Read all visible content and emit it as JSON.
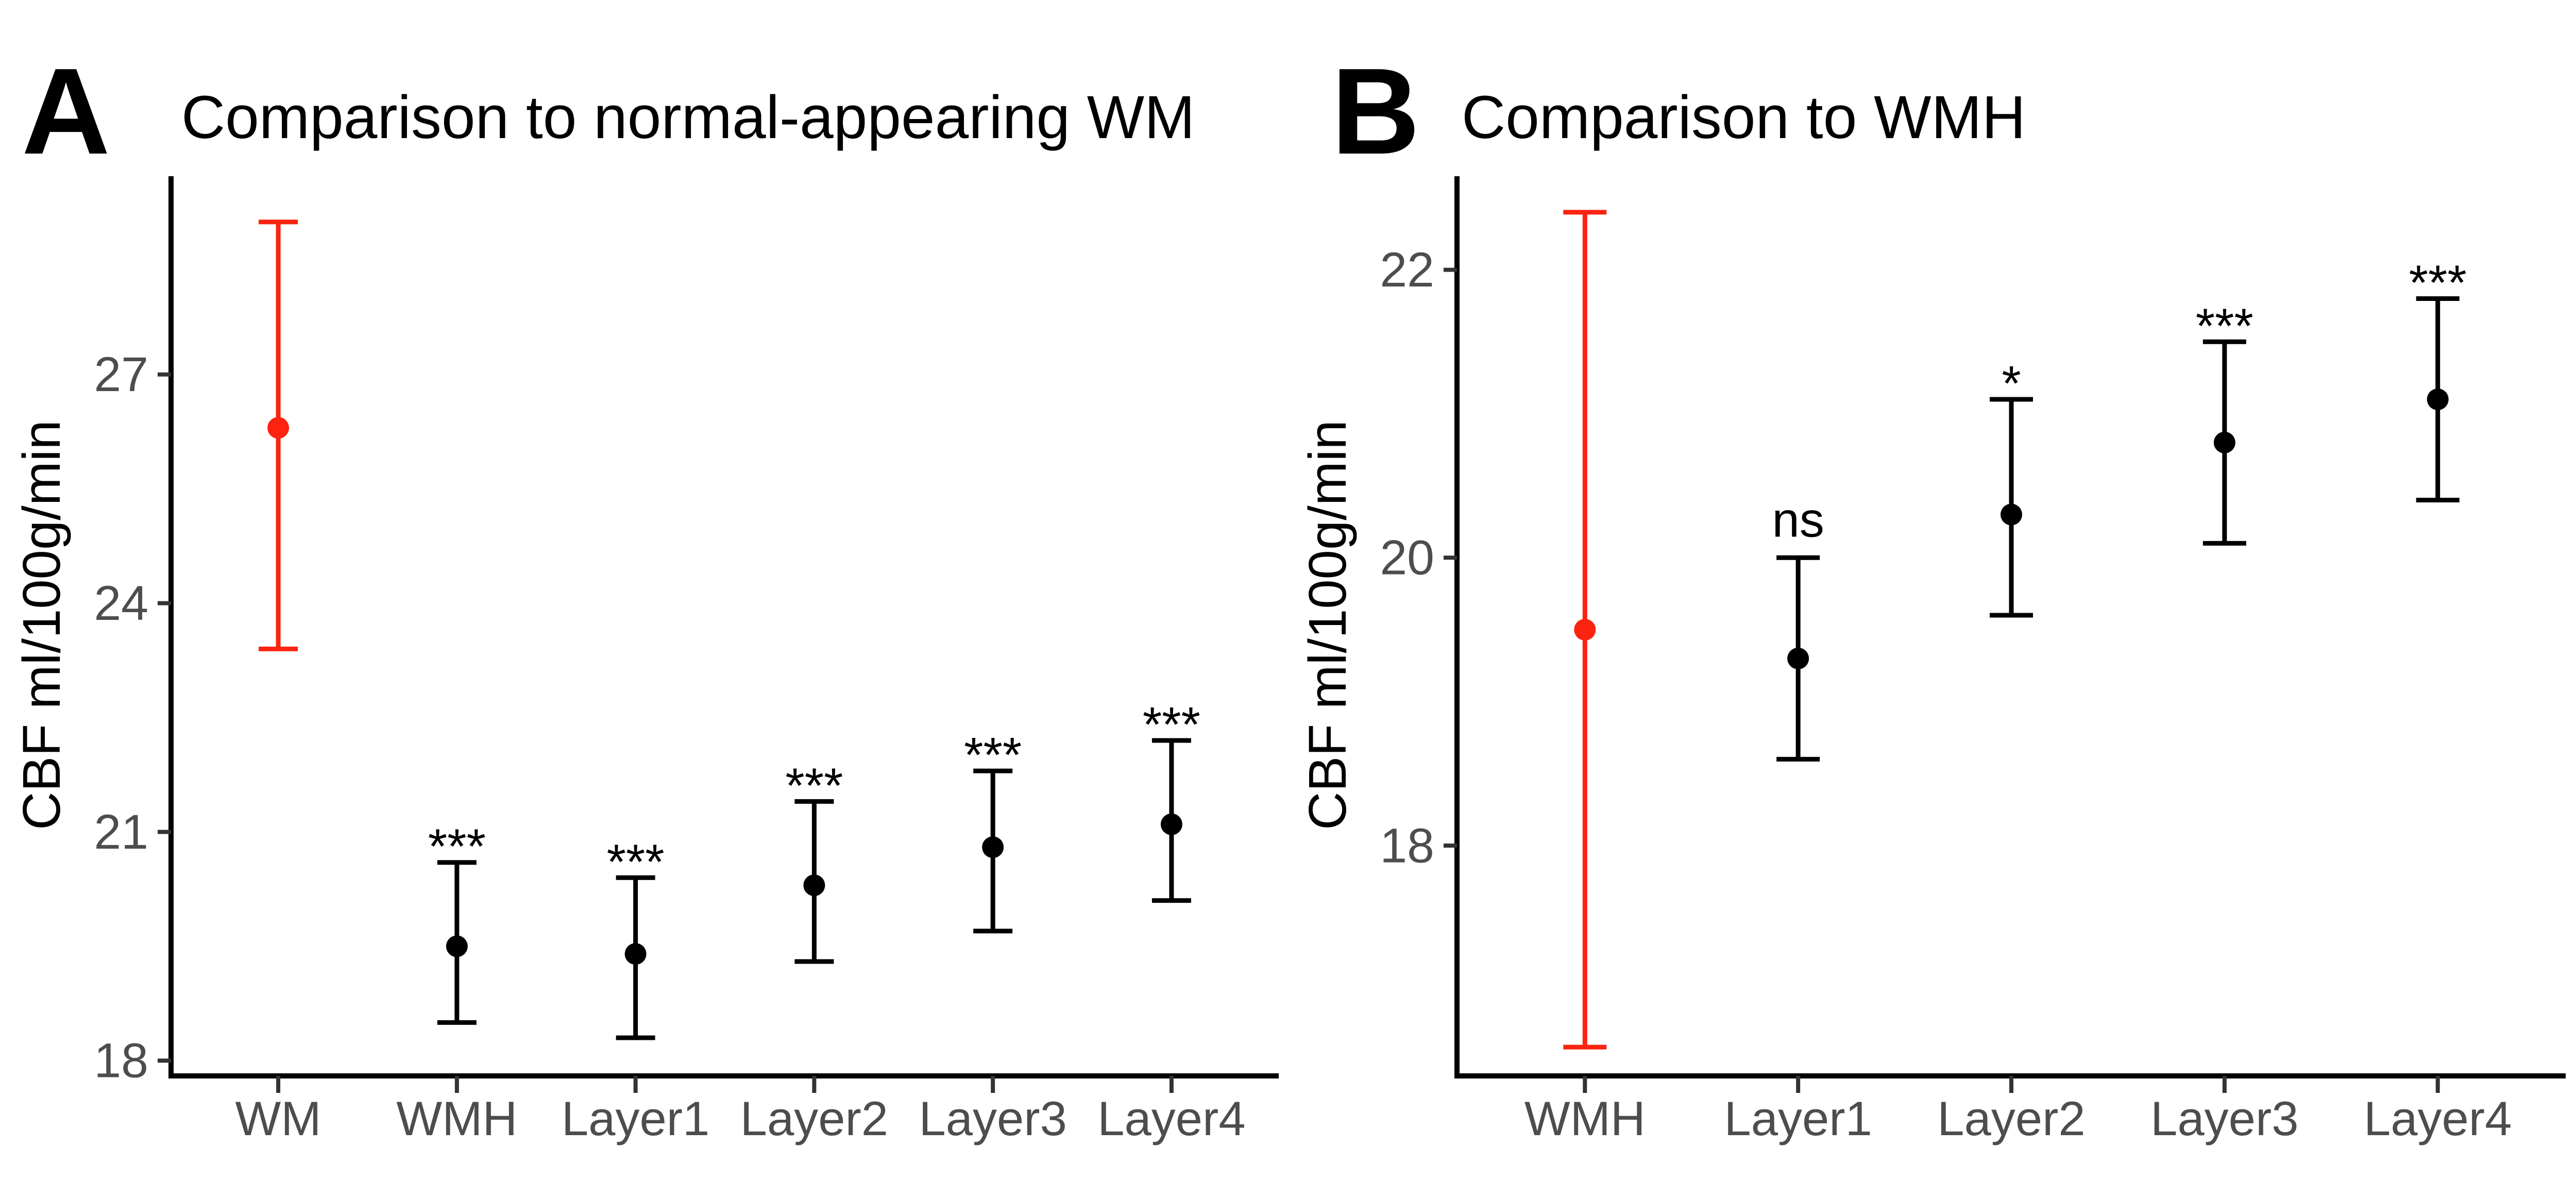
{
  "figure": {
    "background": "#ffffff",
    "axis_color": "#000000",
    "tick_mark_color": "#333333",
    "tick_label_color": "#4d4d4d",
    "category_label_color": "#4d4d4d",
    "title_color": "#000000",
    "highlight_red": "#fc2310",
    "point_black": "#000000",
    "significance_color": "#000000"
  },
  "chart_data": [
    {
      "type": "scatter",
      "subtype": "pointrange-errorbar",
      "panel_letter": "A",
      "title": "Comparison to normal-appearing WM",
      "xlabel": "",
      "ylabel": "CBF ml/100g/min",
      "grid": false,
      "legend": false,
      "ylim": [
        17.8,
        29.6
      ],
      "yticks": [
        18,
        21,
        24,
        27
      ],
      "categories": [
        "WM",
        "WMH",
        "Layer1",
        "Layer2",
        "Layer3",
        "Layer4"
      ],
      "points": [
        {
          "category": "WM",
          "mean": 26.3,
          "ci_lower": 23.4,
          "ci_upper": 29.0,
          "color": "#fc2310",
          "significance": ""
        },
        {
          "category": "WMH",
          "mean": 19.5,
          "ci_lower": 18.5,
          "ci_upper": 20.6,
          "color": "#000000",
          "significance": "***"
        },
        {
          "category": "Layer1",
          "mean": 19.4,
          "ci_lower": 18.3,
          "ci_upper": 20.4,
          "color": "#000000",
          "significance": "***"
        },
        {
          "category": "Layer2",
          "mean": 20.3,
          "ci_lower": 19.3,
          "ci_upper": 21.4,
          "color": "#000000",
          "significance": "***"
        },
        {
          "category": "Layer3",
          "mean": 20.8,
          "ci_lower": 19.7,
          "ci_upper": 21.8,
          "color": "#000000",
          "significance": "***"
        },
        {
          "category": "Layer4",
          "mean": 21.1,
          "ci_lower": 20.1,
          "ci_upper": 22.2,
          "color": "#000000",
          "significance": "***"
        }
      ]
    },
    {
      "type": "scatter",
      "subtype": "pointrange-errorbar",
      "panel_letter": "B",
      "title": "Comparison to WMH",
      "xlabel": "",
      "ylabel": "CBF ml/100g/min",
      "grid": false,
      "legend": false,
      "ylim": [
        16.4,
        22.65
      ],
      "yticks": [
        18,
        20,
        22
      ],
      "categories": [
        "WMH",
        "Layer1",
        "Layer2",
        "Layer3",
        "Layer4"
      ],
      "points": [
        {
          "category": "WMH",
          "mean": 19.5,
          "ci_lower": 16.6,
          "ci_upper": 22.4,
          "color": "#fc2310",
          "significance": ""
        },
        {
          "category": "Layer1",
          "mean": 19.3,
          "ci_lower": 18.6,
          "ci_upper": 20.0,
          "color": "#000000",
          "significance": "ns"
        },
        {
          "category": "Layer2",
          "mean": 20.3,
          "ci_lower": 19.6,
          "ci_upper": 21.1,
          "color": "#000000",
          "significance": "*"
        },
        {
          "category": "Layer3",
          "mean": 20.8,
          "ci_lower": 20.1,
          "ci_upper": 21.5,
          "color": "#000000",
          "significance": "***"
        },
        {
          "category": "Layer4",
          "mean": 21.1,
          "ci_lower": 20.4,
          "ci_upper": 21.8,
          "color": "#000000",
          "significance": "***"
        }
      ]
    }
  ]
}
